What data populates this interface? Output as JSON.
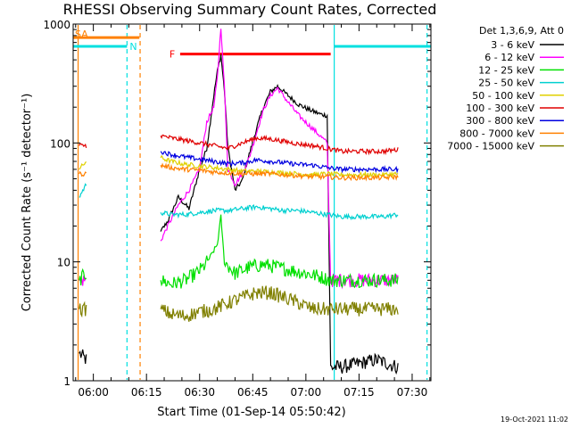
{
  "chart_data": {
    "type": "line",
    "title": "RHESSI Observing Summary Count Rates, Corrected",
    "xlabel": "Start Time (01-Sep-14 05:50:42)",
    "ylabel": "Corrected Count Rate (s⁻¹ detector⁻¹)",
    "yscale": "log",
    "ylim": [
      1,
      1000
    ],
    "xlim_minutes": [
      -5.7,
      95.3
    ],
    "x_ticks": [
      {
        "label": "06:00",
        "t": 0
      },
      {
        "label": "06:15",
        "t": 15
      },
      {
        "label": "06:30",
        "t": 30
      },
      {
        "label": "06:45",
        "t": 45
      },
      {
        "label": "07:00",
        "t": 60
      },
      {
        "label": "07:15",
        "t": 75
      },
      {
        "label": "07:30",
        "t": 90
      }
    ],
    "y_ticks": [
      {
        "label": "1",
        "v": 1
      },
      {
        "label": "10",
        "v": 10
      },
      {
        "label": "100",
        "v": 100
      },
      {
        "label": "1000",
        "v": 1000
      }
    ],
    "legend_header": "Det 1,3,6,9, Att 0",
    "series": [
      {
        "name": "3 - 6 keV",
        "color": "#000000",
        "points": [
          [
            -4,
            1.7
          ],
          [
            -2,
            1.5
          ],
          [
            19,
            18
          ],
          [
            21,
            22
          ],
          [
            24,
            35
          ],
          [
            27,
            28
          ],
          [
            30,
            60
          ],
          [
            32,
            90
          ],
          [
            34,
            250
          ],
          [
            35,
            400
          ],
          [
            36,
            550
          ],
          [
            37,
            280
          ],
          [
            38,
            90
          ],
          [
            40,
            40
          ],
          [
            42,
            48
          ],
          [
            44,
            80
          ],
          [
            46,
            130
          ],
          [
            48,
            200
          ],
          [
            50,
            270
          ],
          [
            52,
            300
          ],
          [
            55,
            250
          ],
          [
            58,
            210
          ],
          [
            61,
            190
          ],
          [
            64,
            175
          ],
          [
            66,
            170
          ],
          [
            67,
            1.3
          ],
          [
            70,
            1.3
          ],
          [
            75,
            1.4
          ],
          [
            80,
            1.5
          ],
          [
            86,
            1.3
          ]
        ]
      },
      {
        "name": "6 - 12 keV",
        "color": "#ff00ff",
        "points": [
          [
            -4,
            7
          ],
          [
            -2,
            7
          ],
          [
            19,
            15
          ],
          [
            21,
            20
          ],
          [
            24,
            30
          ],
          [
            27,
            40
          ],
          [
            30,
            60
          ],
          [
            32,
            150
          ],
          [
            34,
            200
          ],
          [
            35,
            350
          ],
          [
            36,
            950
          ],
          [
            37,
            300
          ],
          [
            38,
            60
          ],
          [
            40,
            45
          ],
          [
            42,
            55
          ],
          [
            44,
            75
          ],
          [
            46,
            120
          ],
          [
            48,
            190
          ],
          [
            50,
            250
          ],
          [
            52,
            290
          ],
          [
            55,
            220
          ],
          [
            58,
            170
          ],
          [
            61,
            140
          ],
          [
            64,
            115
          ],
          [
            66,
            100
          ],
          [
            67,
            7
          ],
          [
            72,
            7
          ],
          [
            78,
            7
          ],
          [
            86,
            7
          ]
        ]
      },
      {
        "name": "12 - 25 keV",
        "color": "#00e000",
        "points": [
          [
            -4,
            7
          ],
          [
            -2,
            8
          ],
          [
            19,
            7
          ],
          [
            22,
            6.5
          ],
          [
            26,
            7
          ],
          [
            29,
            8
          ],
          [
            31,
            9
          ],
          [
            33,
            11
          ],
          [
            35,
            14
          ],
          [
            36,
            24
          ],
          [
            37,
            10
          ],
          [
            40,
            8
          ],
          [
            44,
            9
          ],
          [
            48,
            9.5
          ],
          [
            52,
            9
          ],
          [
            56,
            8.5
          ],
          [
            60,
            8
          ],
          [
            64,
            7.5
          ],
          [
            67,
            7
          ],
          [
            72,
            7
          ],
          [
            78,
            7
          ],
          [
            86,
            7
          ]
        ]
      },
      {
        "name": "25 - 50 keV",
        "color": "#00d0d0",
        "points": [
          [
            -4,
            35
          ],
          [
            -2,
            45
          ],
          [
            19,
            26
          ],
          [
            22,
            25
          ],
          [
            26,
            25
          ],
          [
            30,
            26
          ],
          [
            34,
            27
          ],
          [
            38,
            27
          ],
          [
            42,
            28
          ],
          [
            46,
            29
          ],
          [
            50,
            28
          ],
          [
            54,
            27
          ],
          [
            58,
            27
          ],
          [
            62,
            26
          ],
          [
            66,
            25
          ],
          [
            70,
            24
          ],
          [
            76,
            24
          ],
          [
            82,
            24
          ],
          [
            86,
            25
          ]
        ]
      },
      {
        "name": "50 - 100 keV",
        "color": "#e0d000",
        "points": [
          [
            -4,
            60
          ],
          [
            -2,
            70
          ],
          [
            19,
            75
          ],
          [
            22,
            70
          ],
          [
            26,
            66
          ],
          [
            30,
            64
          ],
          [
            34,
            62
          ],
          [
            38,
            60
          ],
          [
            42,
            58
          ],
          [
            46,
            58
          ],
          [
            50,
            57
          ],
          [
            54,
            56
          ],
          [
            58,
            55
          ],
          [
            62,
            54
          ],
          [
            66,
            55
          ],
          [
            70,
            54
          ],
          [
            76,
            54
          ],
          [
            82,
            54
          ],
          [
            86,
            55
          ]
        ]
      },
      {
        "name": "100 - 300 keV",
        "color": "#e00000",
        "points": [
          [
            -4,
            95
          ],
          [
            -2,
            95
          ],
          [
            19,
            115
          ],
          [
            22,
            110
          ],
          [
            26,
            105
          ],
          [
            30,
            100
          ],
          [
            34,
            95
          ],
          [
            38,
            90
          ],
          [
            42,
            100
          ],
          [
            46,
            110
          ],
          [
            50,
            108
          ],
          [
            54,
            103
          ],
          [
            58,
            98
          ],
          [
            62,
            95
          ],
          [
            66,
            90
          ],
          [
            70,
            85
          ],
          [
            76,
            85
          ],
          [
            82,
            85
          ],
          [
            86,
            88
          ]
        ]
      },
      {
        "name": "300 - 800 keV",
        "color": "#0000e0",
        "points": [
          [
            19,
            85
          ],
          [
            22,
            80
          ],
          [
            26,
            76
          ],
          [
            30,
            73
          ],
          [
            34,
            70
          ],
          [
            38,
            67
          ],
          [
            42,
            68
          ],
          [
            46,
            72
          ],
          [
            50,
            70
          ],
          [
            54,
            68
          ],
          [
            58,
            66
          ],
          [
            62,
            65
          ],
          [
            66,
            62
          ],
          [
            70,
            60
          ],
          [
            76,
            60
          ],
          [
            82,
            60
          ],
          [
            86,
            60
          ]
        ]
      },
      {
        "name": "800 - 7000 keV",
        "color": "#ff8000",
        "points": [
          [
            -4,
            55
          ],
          [
            -2,
            55
          ],
          [
            19,
            65
          ],
          [
            22,
            62
          ],
          [
            26,
            60
          ],
          [
            30,
            59
          ],
          [
            34,
            57
          ],
          [
            38,
            56
          ],
          [
            42,
            55
          ],
          [
            46,
            55
          ],
          [
            50,
            55
          ],
          [
            54,
            54
          ],
          [
            58,
            53
          ],
          [
            62,
            52
          ],
          [
            66,
            52
          ],
          [
            70,
            51
          ],
          [
            76,
            51
          ],
          [
            82,
            51
          ],
          [
            86,
            52
          ]
        ]
      },
      {
        "name": "7000 - 15000 keV",
        "color": "#808000",
        "points": [
          [
            -4,
            4
          ],
          [
            -2,
            4
          ],
          [
            19,
            4
          ],
          [
            22,
            3.6
          ],
          [
            26,
            3.5
          ],
          [
            30,
            3.8
          ],
          [
            34,
            4
          ],
          [
            38,
            4.5
          ],
          [
            42,
            5
          ],
          [
            46,
            5.5
          ],
          [
            50,
            5.5
          ],
          [
            54,
            5
          ],
          [
            58,
            4.5
          ],
          [
            62,
            4
          ],
          [
            66,
            4
          ],
          [
            70,
            4
          ],
          [
            76,
            4
          ],
          [
            82,
            4
          ],
          [
            86,
            4
          ]
        ]
      }
    ],
    "attenuator_bars": [
      {
        "label": "SA",
        "color": "#ff8000",
        "t0": -5.7,
        "t1": 13,
        "y": 770
      },
      {
        "label": "N",
        "color": "#00e0e0",
        "t0": -5.7,
        "t1": 9.5,
        "y": 650
      },
      {
        "label": "F",
        "color": "#ff0000",
        "t0": 24.5,
        "t1": 67,
        "y": 560
      },
      {
        "label": "",
        "color": "#00e0e0",
        "t0": 68,
        "t1": 95.3,
        "y": 650
      }
    ],
    "vertical_markers": [
      {
        "t": -4.3,
        "color": "#ff8000",
        "style": "solid"
      },
      {
        "t": 9.5,
        "color": "#00e0e0",
        "style": "dashed"
      },
      {
        "t": 13.2,
        "color": "#ff8000",
        "style": "dashed"
      },
      {
        "t": 68,
        "color": "#00e0e0",
        "style": "solid"
      },
      {
        "t": 94.2,
        "color": "#00e0e0",
        "style": "dashed"
      }
    ],
    "timestamp": "19-Oct-2021 11:02"
  }
}
